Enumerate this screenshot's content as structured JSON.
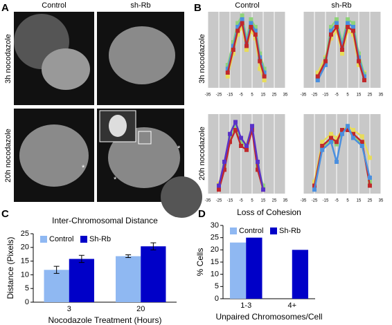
{
  "panel_labels": [
    "A",
    "B",
    "C",
    "D"
  ],
  "panel_a": {
    "columns": [
      "Control",
      "sh-Rb"
    ],
    "rows": [
      "3h nocodazole",
      "20h nocodazole"
    ],
    "asterisk": "*"
  },
  "panel_b": {
    "columns": [
      "Control",
      "sh-Rb"
    ],
    "rows": [
      "3h nocodazole",
      "20h nocodazole"
    ]
  },
  "chart_data": [
    {
      "type": "line",
      "xlim": [
        -35,
        35
      ],
      "xticks": [
        -35,
        -25,
        -15,
        -5,
        5,
        15,
        25,
        35
      ],
      "ylim": [
        0,
        100
      ],
      "grid": true,
      "x": [
        -17,
        -12,
        -8,
        -4,
        0,
        4,
        8,
        12,
        16
      ],
      "series": [
        {
          "color": "#e8dc5a",
          "values": [
            15,
            45,
            70,
            80,
            50,
            75,
            65,
            25,
            10
          ]
        },
        {
          "color": "#8fd37a",
          "values": [
            30,
            60,
            85,
            95,
            65,
            90,
            80,
            45,
            25
          ]
        },
        {
          "color": "#4a8fdf",
          "values": [
            25,
            55,
            80,
            90,
            60,
            85,
            75,
            40,
            20
          ]
        },
        {
          "color": "#c0282b",
          "values": [
            20,
            50,
            75,
            85,
            55,
            80,
            70,
            35,
            15
          ]
        }
      ]
    },
    {
      "type": "line",
      "xlim": [
        -35,
        35
      ],
      "xticks": [
        -35,
        -25,
        -15,
        -5,
        5,
        15,
        25,
        35
      ],
      "ylim": [
        0,
        100
      ],
      "grid": true,
      "x": [
        -22,
        -15,
        -10,
        -5,
        0,
        5,
        10,
        15,
        20
      ],
      "series": [
        {
          "color": "#e8dc5a",
          "values": [
            20,
            40,
            65,
            75,
            45,
            75,
            70,
            30,
            20
          ]
        },
        {
          "color": "#8fd37a",
          "values": [
            12,
            38,
            80,
            90,
            60,
            90,
            85,
            45,
            18
          ]
        },
        {
          "color": "#4a8fdf",
          "values": [
            10,
            30,
            75,
            85,
            55,
            85,
            80,
            40,
            15
          ]
        },
        {
          "color": "#c0282b",
          "values": [
            15,
            35,
            70,
            80,
            50,
            80,
            75,
            35,
            10
          ]
        }
      ]
    },
    {
      "type": "line",
      "xlim": [
        -35,
        35
      ],
      "xticks": [
        -35,
        -25,
        -15,
        -5,
        5,
        15,
        25,
        35
      ],
      "ylim": [
        0,
        100
      ],
      "grid": true,
      "x": [
        -25,
        -20,
        -15,
        -10,
        -5,
        0,
        5,
        10,
        15
      ],
      "series": [
        {
          "color": "#e8dc5a",
          "values": [
            12,
            38,
            72,
            88,
            68,
            62,
            84,
            38,
            8
          ]
        },
        {
          "color": "#8fd37a",
          "values": [
            8,
            35,
            70,
            85,
            65,
            58,
            82,
            35,
            10
          ]
        },
        {
          "color": "#c0282b",
          "values": [
            5,
            30,
            65,
            80,
            60,
            55,
            80,
            30,
            5
          ]
        },
        {
          "color": "#5a32c8",
          "values": [
            10,
            40,
            75,
            90,
            70,
            60,
            85,
            40,
            5
          ]
        }
      ]
    },
    {
      "type": "line",
      "xlim": [
        -35,
        35
      ],
      "xticks": [
        -35,
        -25,
        -15,
        -5,
        5,
        15,
        25,
        35
      ],
      "ylim": [
        0,
        100
      ],
      "grid": true,
      "x": [
        -25,
        -18,
        -10,
        -5,
        0,
        5,
        10,
        18,
        25
      ],
      "series": [
        {
          "color": "#e8dc5a",
          "values": [
            15,
            65,
            75,
            70,
            80,
            85,
            80,
            72,
            45
          ]
        },
        {
          "color": "#8fd37a",
          "values": [
            8,
            58,
            68,
            62,
            78,
            82,
            72,
            62,
            15
          ]
        },
        {
          "color": "#c0282b",
          "values": [
            10,
            60,
            70,
            65,
            80,
            80,
            75,
            65,
            10
          ]
        },
        {
          "color": "#4a8fdf",
          "values": [
            5,
            55,
            65,
            40,
            75,
            85,
            70,
            60,
            20
          ]
        }
      ]
    },
    {
      "type": "bar",
      "title": "Inter-Chromosomal Distance",
      "y_label": "Distance (Pixels)",
      "x_label": "Nocodazole Treatment (Hours)",
      "categories": [
        "3",
        "20"
      ],
      "ylim": [
        0,
        25
      ],
      "yticks": [
        0,
        5,
        10,
        15,
        20,
        25
      ],
      "series": [
        {
          "name": "Control",
          "color": "#8fb8f2",
          "values": [
            11.8,
            16.8
          ],
          "errors": [
            1.3,
            0.5
          ]
        },
        {
          "name": "Sh-Rb",
          "color": "#0000c8",
          "values": [
            15.8,
            20.4
          ],
          "errors": [
            1.3,
            1.3
          ]
        }
      ]
    },
    {
      "type": "bar",
      "title": "Loss of Cohesion",
      "y_label": "% Cells",
      "x_label": "Unpaired Chromosomes/Cell",
      "categories": [
        "1-3",
        "4+"
      ],
      "ylim": [
        0,
        30
      ],
      "yticks": [
        0,
        5,
        10,
        15,
        20,
        25,
        30
      ],
      "series": [
        {
          "name": "Control",
          "color": "#8fb8f2",
          "values": [
            23,
            0
          ]
        },
        {
          "name": "Sh-Rb",
          "color": "#0000c8",
          "values": [
            25,
            20
          ]
        }
      ]
    }
  ]
}
